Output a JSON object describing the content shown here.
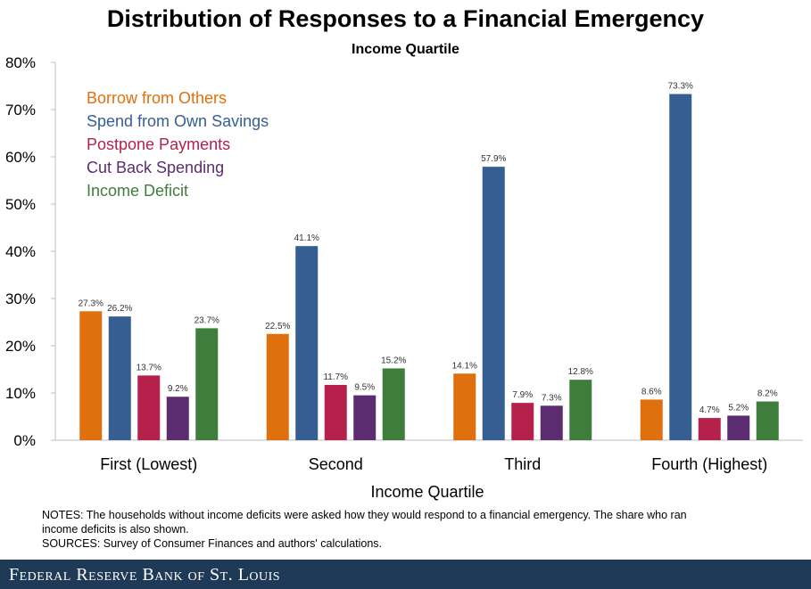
{
  "chart_data": {
    "type": "bar",
    "title": "Distribution of Responses to a Financial Emergency",
    "subtitle": "Income Quartile",
    "xlabel": "Income Quartile",
    "ylabel": "",
    "ylim": [
      0,
      80
    ],
    "yticks": [
      "0%",
      "10%",
      "20%",
      "30%",
      "40%",
      "50%",
      "60%",
      "70%",
      "80%"
    ],
    "legend_position": "top-left",
    "grid": false,
    "categories": [
      "First (Lowest)",
      "Second",
      "Third",
      "Fourth (Highest)"
    ],
    "series": [
      {
        "name": "Borrow from Others",
        "color": "#e0700e",
        "values": [
          27.3,
          22.5,
          14.1,
          8.6
        ],
        "labels": [
          "27.3%",
          "22.5%",
          "14.1%",
          "8.6%"
        ]
      },
      {
        "name": "Spend from Own Savings",
        "color": "#355f92",
        "values": [
          26.2,
          41.1,
          57.9,
          73.3
        ],
        "labels": [
          "26.2%",
          "41.1%",
          "57.9%",
          "73.3%"
        ]
      },
      {
        "name": "Postpone Payments",
        "color": "#b5214a",
        "values": [
          13.7,
          11.7,
          7.9,
          4.7
        ],
        "labels": [
          "13.7%",
          "11.7%",
          "7.9%",
          "4.7%"
        ]
      },
      {
        "name": "Cut Back Spending",
        "color": "#5b2d70",
        "values": [
          9.2,
          9.5,
          7.3,
          5.2
        ],
        "labels": [
          "9.2%",
          "9.5%",
          "7.3%",
          "5.2%"
        ]
      },
      {
        "name": "Income Deficit",
        "color": "#3e7d3b",
        "values": [
          23.7,
          15.2,
          12.8,
          8.2
        ],
        "labels": [
          "23.7%",
          "15.2%",
          "12.8%",
          "8.2%"
        ]
      }
    ]
  },
  "notes": {
    "line1": "NOTES: The households without income deficits were asked how they would respond to a financial emergency. The share who ran",
    "line2": "income deficits is also shown.",
    "line3": "SOURCES: Survey of Consumer Finances and authors' calculations."
  },
  "footer": {
    "text": "Federal Reserve Bank of St. Louis"
  }
}
